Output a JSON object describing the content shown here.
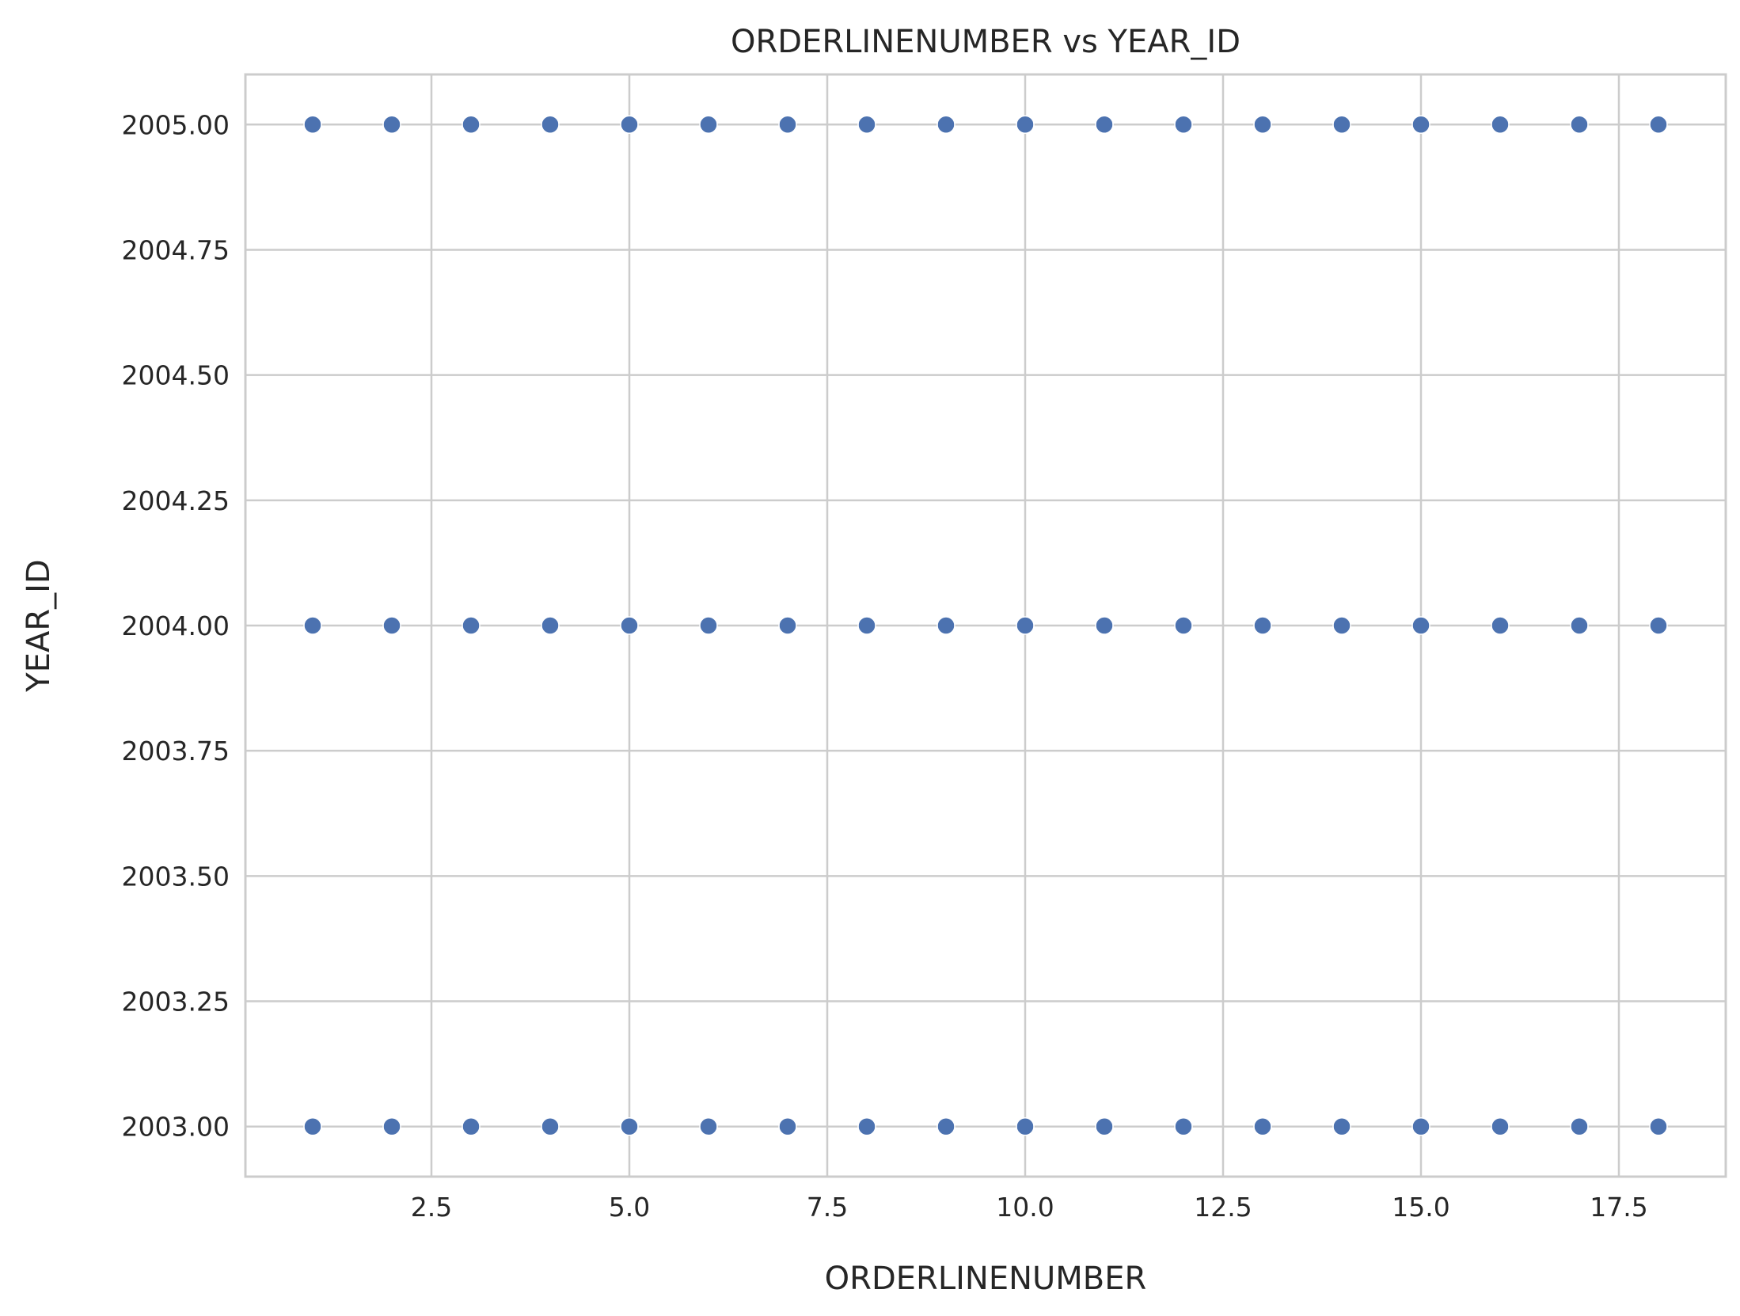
{
  "chart_data": {
    "type": "scatter",
    "title": "ORDERLINENUMBER vs YEAR_ID",
    "xlabel": "ORDERLINENUMBER",
    "ylabel": "YEAR_ID",
    "xlim": [
      0.15,
      18.85
    ],
    "ylim": [
      2002.9,
      2005.1
    ],
    "xticks": [
      2.5,
      5.0,
      7.5,
      10.0,
      12.5,
      15.0,
      17.5
    ],
    "xtick_labels": [
      "2.5",
      "5.0",
      "7.5",
      "10.0",
      "12.5",
      "15.0",
      "17.5"
    ],
    "yticks": [
      2003.0,
      2003.25,
      2003.5,
      2003.75,
      2004.0,
      2004.25,
      2004.5,
      2004.75,
      2005.0
    ],
    "ytick_labels": [
      "2003.00",
      "2003.25",
      "2003.50",
      "2003.75",
      "2004.00",
      "2004.25",
      "2004.50",
      "2004.75",
      "2005.00"
    ],
    "grid": true,
    "legend": "none",
    "colors": {
      "marker": "#4c72b0",
      "grid": "#cccccc",
      "axes_edge": "#cccccc",
      "text": "#262626"
    },
    "series": [
      {
        "x": [
          1,
          2,
          3,
          4,
          5,
          6,
          7,
          8,
          9,
          10,
          11,
          12,
          13,
          14,
          15,
          16,
          17,
          18,
          1,
          2,
          3,
          4,
          5,
          6,
          7,
          8,
          9,
          10,
          11,
          12,
          13,
          14,
          15,
          16,
          17,
          18,
          1,
          2,
          3,
          4,
          5,
          6,
          7,
          8,
          9,
          10,
          11,
          12,
          13,
          14,
          15,
          16,
          17,
          18
        ],
        "y": [
          2005,
          2005,
          2005,
          2005,
          2005,
          2005,
          2005,
          2005,
          2005,
          2005,
          2005,
          2005,
          2005,
          2005,
          2005,
          2005,
          2005,
          2005,
          2004,
          2004,
          2004,
          2004,
          2004,
          2004,
          2004,
          2004,
          2004,
          2004,
          2004,
          2004,
          2004,
          2004,
          2004,
          2004,
          2004,
          2004,
          2003,
          2003,
          2003,
          2003,
          2003,
          2003,
          2003,
          2003,
          2003,
          2003,
          2003,
          2003,
          2003,
          2003,
          2003,
          2003,
          2003,
          2003
        ]
      }
    ]
  }
}
